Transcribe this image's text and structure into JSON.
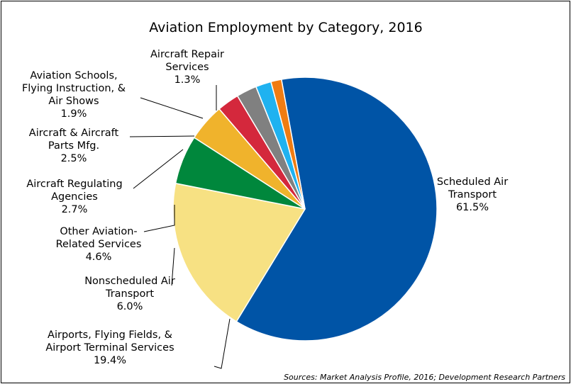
{
  "chart_data": {
    "type": "pie",
    "title": "Aviation Employment by Category, 2016",
    "source": "Sources: Market Analysis Profile, 2016; Development Research Partners",
    "slices": [
      {
        "label": [
          "Scheduled Air",
          "Transport"
        ],
        "percent_label": "61.5%",
        "value": 61.5,
        "color": "#0054A6"
      },
      {
        "label": [
          "Airports, Flying Fields, &",
          "Airport Terminal Services"
        ],
        "percent_label": "19.4%",
        "value": 19.4,
        "color": "#F7E183"
      },
      {
        "label": [
          "Nonscheduled Air",
          "Transport"
        ],
        "percent_label": "6.0%",
        "value": 6.0,
        "color": "#00873C"
      },
      {
        "label": [
          "Other Aviation-",
          "Related Services"
        ],
        "percent_label": "4.6%",
        "value": 4.6,
        "color": "#F0B32C"
      },
      {
        "label": [
          "Aircraft Regulating",
          "Agencies"
        ],
        "percent_label": "2.7%",
        "value": 2.7,
        "color": "#D4283C"
      },
      {
        "label": [
          "Aircraft & Aircraft",
          "Parts Mfg."
        ],
        "percent_label": "2.5%",
        "value": 2.5,
        "color": "#808080"
      },
      {
        "label": [
          "Aviation Schools,",
          "Flying Instruction, &",
          "Air Shows"
        ],
        "percent_label": "1.9%",
        "value": 1.9,
        "color": "#1FB2F0"
      },
      {
        "label": [
          "Aircraft Repair",
          "Services"
        ],
        "percent_label": "1.3%",
        "value": 1.3,
        "color": "#F07C12"
      }
    ]
  }
}
